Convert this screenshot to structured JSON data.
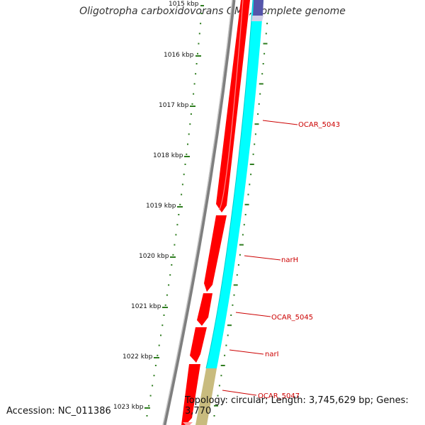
{
  "header": {
    "title": "Oligotropha carboxidovorans OM5, complete genome"
  },
  "footer": {
    "accession": "Accession: NC_011386",
    "topology": "Topology: circular; Length: 3,745,629 bp; Genes: 3,770"
  },
  "ticks": [
    {
      "label": "1015 kbp"
    },
    {
      "label": "1016 kbp"
    },
    {
      "label": "1017 kbp"
    },
    {
      "label": "1018 kbp"
    },
    {
      "label": "1019 kbp"
    },
    {
      "label": "1020 kbp"
    },
    {
      "label": "1021 kbp"
    },
    {
      "label": "1022 kbp"
    },
    {
      "label": "1023 kbp"
    }
  ],
  "genes": [
    {
      "name": "OCAR_5043"
    },
    {
      "name": "narH"
    },
    {
      "name": "OCAR_5045"
    },
    {
      "name": "narI"
    },
    {
      "name": "OCAR_5047"
    }
  ],
  "colors": {
    "backbone": "#7f7f7f",
    "cds": "#ff0000",
    "rna_track": "#00ffff",
    "rna_other": "#c8bb7e",
    "top_feature": "#5555aa",
    "gc_ticks": "#2e7d1f",
    "label": "#cc0000"
  }
}
